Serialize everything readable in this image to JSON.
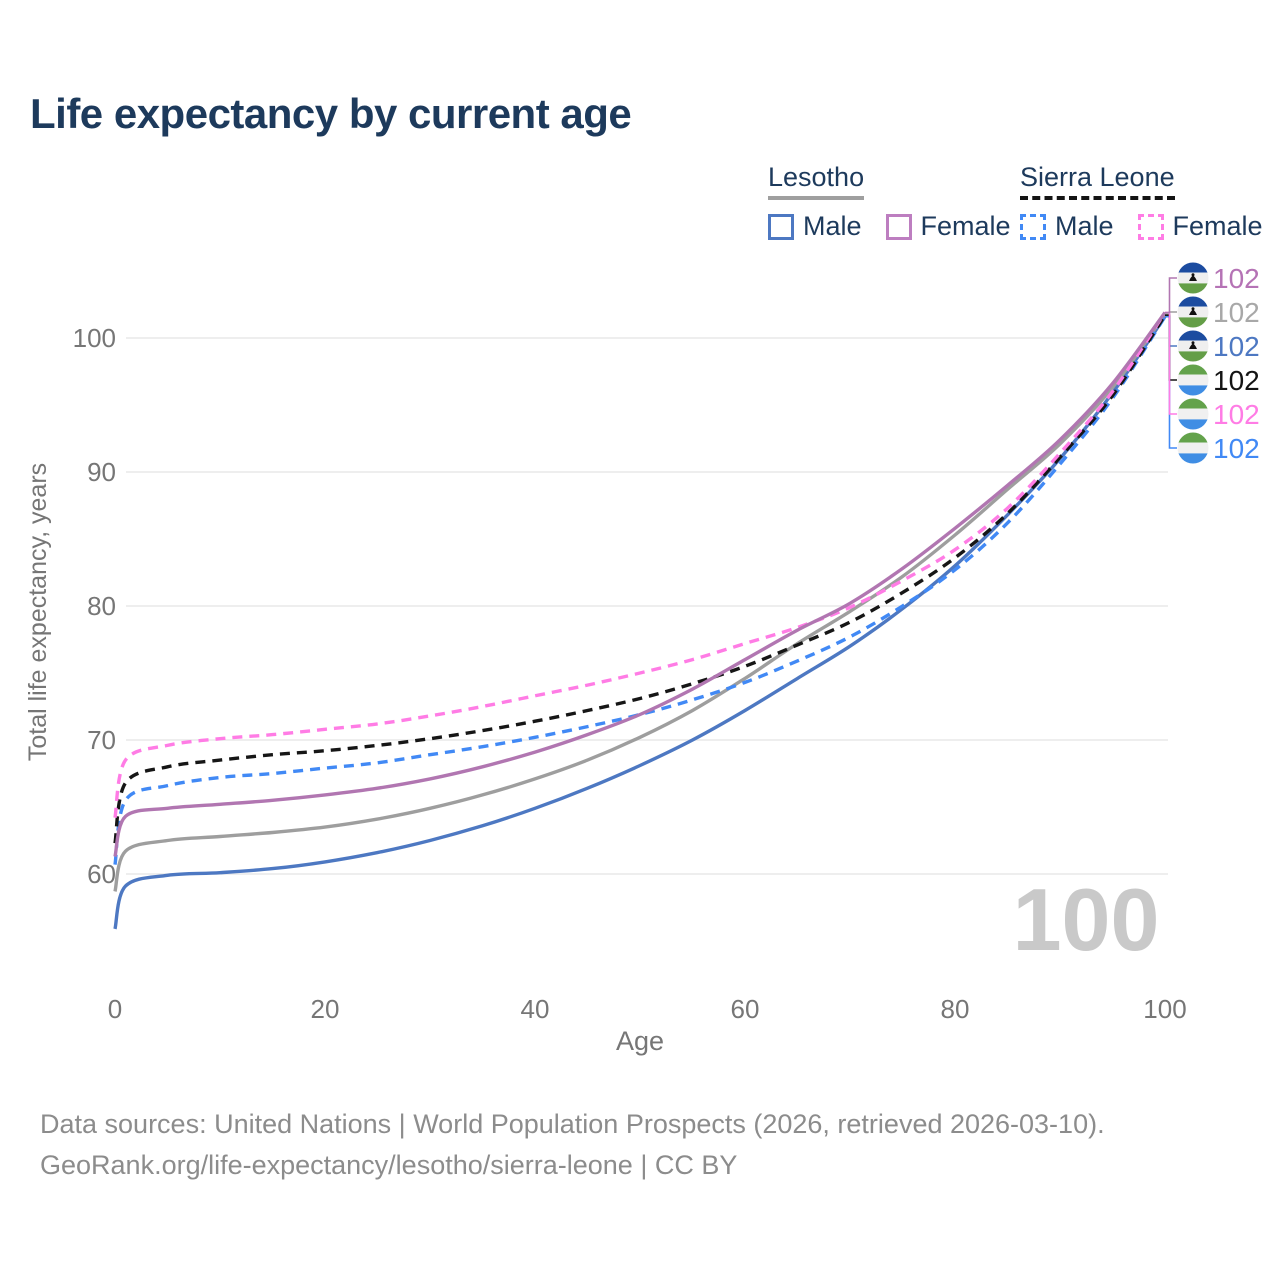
{
  "title": "Life expectancy by current age",
  "legend": {
    "groups": [
      {
        "name": "Lesotho",
        "line_style": "solid",
        "underline_color": "#9f9f9f",
        "items": [
          {
            "label": "Male",
            "color": "#4d78c2"
          },
          {
            "label": "Female",
            "color": "#bd7ec0"
          }
        ]
      },
      {
        "name": "Sierra Leone",
        "line_style": "dashed",
        "underline_color": "#141414",
        "items": [
          {
            "label": "Male",
            "color": "#4189f5"
          },
          {
            "label": "Female",
            "color": "#ff7ce5"
          }
        ]
      }
    ]
  },
  "chart_data": {
    "type": "line",
    "title": "Life expectancy by current age",
    "xlabel": "Age",
    "ylabel": "Total life expectancy, years",
    "x_ticks": [
      0,
      20,
      40,
      60,
      80,
      100
    ],
    "y_ticks": [
      60,
      70,
      80,
      90,
      100
    ],
    "xlim": [
      0,
      103
    ],
    "ylim": [
      54,
      104
    ],
    "grid": "horizontal-only",
    "legend_position": "top-right",
    "watermark": "100",
    "x": [
      0,
      1,
      5,
      10,
      15,
      20,
      25,
      30,
      35,
      40,
      45,
      50,
      55,
      60,
      65,
      70,
      75,
      80,
      85,
      90,
      95,
      100
    ],
    "series": [
      {
        "name": "Lesotho Male",
        "country": "Lesotho",
        "sex": "Male",
        "color": "#4d78c2",
        "dash": false,
        "flag": "lesotho",
        "row": 2,
        "end_label": "102",
        "end_label_color": "#4d78c2",
        "values": [
          55.9,
          59.1,
          59.9,
          60.1,
          60.4,
          60.9,
          61.6,
          62.5,
          63.6,
          64.9,
          66.4,
          68.1,
          70.0,
          72.2,
          74.6,
          77.0,
          79.8,
          83.0,
          86.8,
          91.0,
          95.9,
          101.6
        ]
      },
      {
        "name": "Lesotho",
        "country": "Lesotho",
        "sex": "All",
        "color": "#9e9e9e",
        "dash": false,
        "flag": "lesotho",
        "row": 1,
        "end_label": "102",
        "end_label_color": "#a8a8a8",
        "values": [
          58.7,
          61.7,
          62.5,
          62.8,
          63.1,
          63.5,
          64.1,
          64.9,
          65.9,
          67.1,
          68.5,
          70.2,
          72.2,
          74.6,
          77.2,
          79.6,
          82.2,
          85.3,
          88.7,
          92.1,
          96.3,
          101.8
        ]
      },
      {
        "name": "Sierra Leone Male",
        "country": "Sierra Leone",
        "sex": "Male",
        "color": "#4189f5",
        "dash": true,
        "flag": "sierra-leone",
        "row": 5,
        "end_label": "102",
        "end_label_color": "#4189f5",
        "values": [
          60.7,
          65.5,
          66.6,
          67.2,
          67.5,
          67.9,
          68.3,
          68.9,
          69.5,
          70.2,
          71.0,
          71.9,
          73.0,
          74.3,
          75.9,
          77.7,
          80.0,
          82.7,
          86.2,
          90.6,
          95.5,
          101.6
        ]
      },
      {
        "name": "Sierra Leone",
        "country": "Sierra Leone",
        "sex": "All",
        "color": "#161616",
        "dash": true,
        "flag": "sierra-leone",
        "row": 3,
        "end_label": "102",
        "end_label_color": "#141414",
        "values": [
          62.3,
          66.8,
          68.0,
          68.5,
          68.9,
          69.2,
          69.6,
          70.1,
          70.7,
          71.4,
          72.2,
          73.1,
          74.2,
          75.5,
          77.1,
          78.8,
          81.0,
          83.6,
          86.9,
          91.1,
          95.7,
          101.7
        ]
      },
      {
        "name": "Sierra Leone Female",
        "country": "Sierra Leone",
        "sex": "Female",
        "color": "#ff7ce5",
        "dash": true,
        "flag": "sierra-leone",
        "row": 4,
        "end_label": "102",
        "end_label_color": "#ff7ce5",
        "values": [
          64.2,
          68.5,
          69.6,
          70.1,
          70.4,
          70.8,
          71.2,
          71.8,
          72.5,
          73.3,
          74.1,
          75.0,
          76.0,
          77.2,
          78.4,
          79.9,
          81.9,
          84.2,
          87.3,
          91.4,
          96.0,
          101.9
        ]
      },
      {
        "name": "Lesotho Female",
        "country": "Lesotho",
        "sex": "Female",
        "color": "#b176b1",
        "dash": false,
        "flag": "lesotho",
        "row": 0,
        "end_label": "102",
        "end_label_color": "#b573b5",
        "values": [
          61.3,
          64.3,
          64.9,
          65.2,
          65.5,
          65.9,
          66.4,
          67.1,
          68.0,
          69.1,
          70.4,
          71.9,
          73.8,
          76.0,
          78.2,
          80.2,
          82.8,
          85.8,
          89.0,
          92.4,
          96.6,
          101.9
        ]
      }
    ],
    "flag_colors": {
      "lesotho": [
        "#1c4ca0",
        "#efefef",
        "#649e47"
      ],
      "sierra-leone": [
        "#63a24b",
        "#f0f0f0",
        "#3f8de4"
      ]
    }
  },
  "footer": {
    "line1": "Data sources: United Nations | World Population Prospects (2026, retrieved 2026-03-10).",
    "line2": "GeoRank.org/life-expectancy/lesotho/sierra-leone | CC BY"
  }
}
